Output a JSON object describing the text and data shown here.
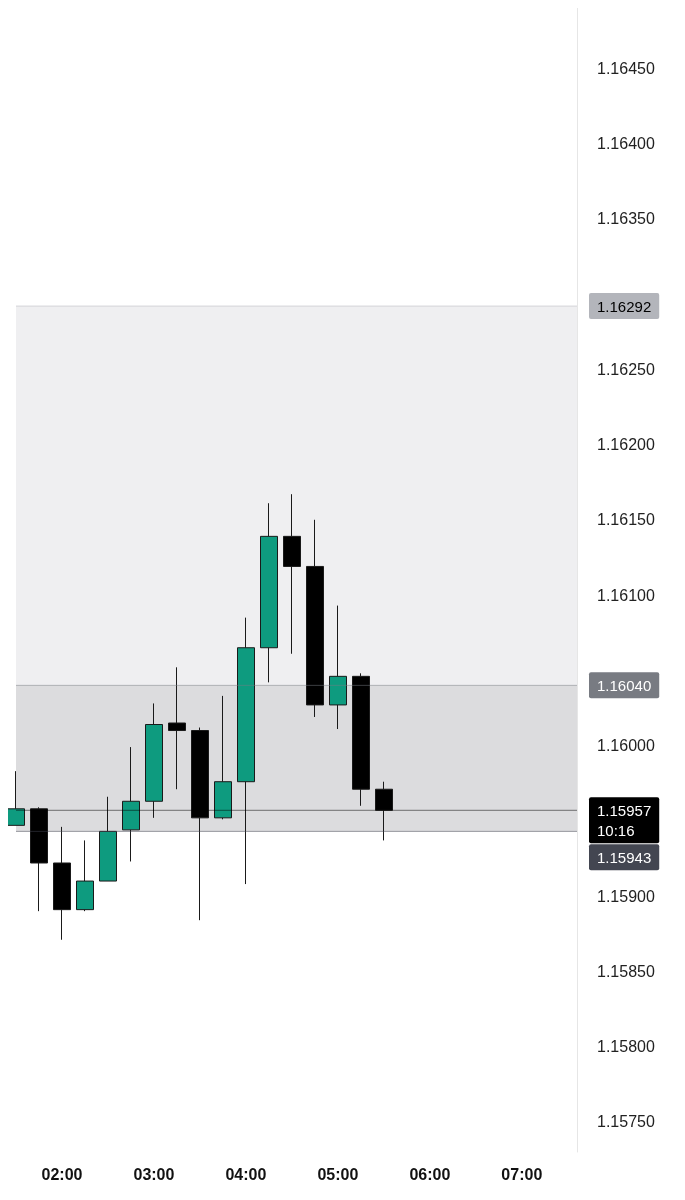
{
  "chart_data": {
    "type": "candlestick",
    "x": [
      1.5,
      1.75,
      2,
      2.25,
      2.5,
      2.75,
      3,
      3.25,
      3.5,
      3.75,
      4,
      4.25,
      4.5,
      4.75,
      5,
      5.25,
      5.5
    ],
    "ohlc": [
      [
        1.15947,
        1.15983,
        1.15947,
        1.15958
      ],
      [
        1.15958,
        1.15959,
        1.1589,
        1.15922
      ],
      [
        1.15922,
        1.15946,
        1.15871,
        1.15891
      ],
      [
        1.15891,
        1.15937,
        1.1589,
        1.1591
      ],
      [
        1.1591,
        1.15966,
        1.1591,
        1.15943
      ],
      [
        1.15944,
        1.15999,
        1.15923,
        1.15963
      ],
      [
        1.15963,
        1.16028,
        1.15952,
        1.16014
      ],
      [
        1.16015,
        1.16052,
        1.15971,
        1.1601
      ],
      [
        1.1601,
        1.16012,
        1.15884,
        1.15952
      ],
      [
        1.15952,
        1.16033,
        1.15951,
        1.15976
      ],
      [
        1.15976,
        1.16085,
        1.15908,
        1.16065
      ],
      [
        1.16065,
        1.16161,
        1.16042,
        1.16139
      ],
      [
        1.16139,
        1.16167,
        1.16061,
        1.16119
      ],
      [
        1.16119,
        1.1615,
        1.16019,
        1.16027
      ],
      [
        1.16027,
        1.16093,
        1.16011,
        1.16046
      ],
      [
        1.16046,
        1.16048,
        1.1596,
        1.15971
      ],
      [
        1.15971,
        1.15976,
        1.15937,
        1.15957
      ]
    ],
    "colors": [
      "#0e9b7f",
      "#000000",
      "#000000",
      "#0e9b7f",
      "#0e9b7f",
      "#0e9b7f",
      "#0e9b7f",
      "#000000",
      "#000000",
      "#0e9b7f",
      "#0e9b7f",
      "#0e9b7f",
      "#000000",
      "#000000",
      "#0e9b7f",
      "#000000",
      "#000000"
    ],
    "xlim": [
      1.5,
      7.6
    ],
    "xticks": [
      {
        "value": 2,
        "label": "02:00"
      },
      {
        "value": 3,
        "label": "03:00"
      },
      {
        "value": 4,
        "label": "04:00"
      },
      {
        "value": 5,
        "label": "05:00"
      },
      {
        "value": 6,
        "label": "06:00"
      },
      {
        "value": 7,
        "label": "07:00"
      }
    ],
    "ylim": [
      1.1573,
      1.1649
    ],
    "yticks": [
      {
        "value": 1.1575,
        "label": "1.15750"
      },
      {
        "value": 1.158,
        "label": "1.15800"
      },
      {
        "value": 1.1585,
        "label": "1.15850"
      },
      {
        "value": 1.159,
        "label": "1.15900"
      },
      {
        "value": 1.16,
        "label": "1.16000"
      },
      {
        "value": 1.161,
        "label": "1.16100"
      },
      {
        "value": 1.1615,
        "label": "1.16150"
      },
      {
        "value": 1.162,
        "label": "1.16200"
      },
      {
        "value": 1.1625,
        "label": "1.16250"
      },
      {
        "value": 1.1635,
        "label": "1.16350"
      },
      {
        "value": 1.164,
        "label": "1.16400"
      },
      {
        "value": 1.1645,
        "label": "1.16450"
      }
    ],
    "bands": [
      {
        "axis": "y",
        "from": 1.1604,
        "to": 1.16292,
        "color": "#efeff1"
      },
      {
        "axis": "y",
        "from": 1.15943,
        "to": 1.1604,
        "color": "#dcdcde"
      }
    ],
    "ref_lines": [
      {
        "axis": "y",
        "value": 1.16292,
        "label": "1.16292",
        "color": "#b3b5bb"
      },
      {
        "axis": "y",
        "value": 1.1604,
        "label": "1.16040",
        "color": "#787b82"
      },
      {
        "axis": "y",
        "value": 1.15957,
        "label": "1.15957\n10:16",
        "color": "#000000"
      },
      {
        "axis": "y",
        "value": 1.15943,
        "label": "1.15943",
        "color": "#434651"
      }
    ],
    "grid": false
  }
}
